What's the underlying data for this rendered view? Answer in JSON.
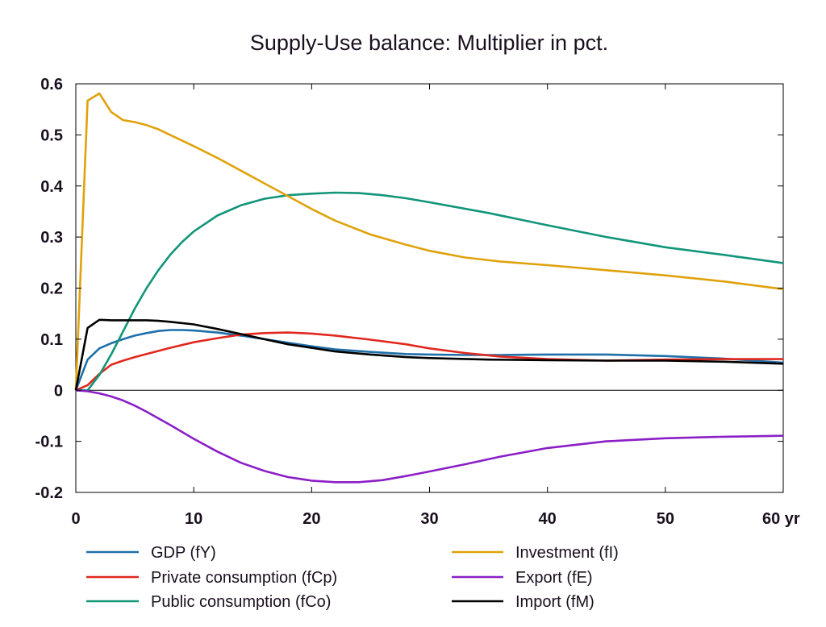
{
  "chart_data": {
    "type": "line",
    "title": "Supply-Use balance: Multiplier in pct.",
    "xlabel": "",
    "ylabel": "",
    "x_unit_label": "yr",
    "xlim": [
      0,
      60
    ],
    "ylim": [
      -0.2,
      0.6
    ],
    "x_ticks": [
      0,
      10,
      20,
      30,
      40,
      50,
      60
    ],
    "x_tick_labels": [
      "0",
      "10",
      "20",
      "30",
      "40",
      "50",
      "60 yr"
    ],
    "y_ticks": [
      -0.2,
      -0.1,
      0,
      0.1,
      0.2,
      0.3,
      0.4,
      0.5,
      0.6
    ],
    "y_tick_labels": [
      "-0.2",
      "-0.1",
      "0",
      "0.1",
      "0.2",
      "0.3",
      "0.4",
      "0.5",
      "0.6"
    ],
    "grid": false,
    "zero_line": true,
    "legend_position": "bottom",
    "series": [
      {
        "name": "GDP (fY)",
        "color": "#1f6fa8",
        "points": [
          [
            0,
            0
          ],
          [
            1,
            0.06
          ],
          [
            2,
            0.082
          ],
          [
            3,
            0.092
          ],
          [
            4,
            0.1
          ],
          [
            5,
            0.107
          ],
          [
            6,
            0.112
          ],
          [
            7,
            0.116
          ],
          [
            8,
            0.118
          ],
          [
            9,
            0.118
          ],
          [
            10,
            0.117
          ],
          [
            12,
            0.113
          ],
          [
            14,
            0.107
          ],
          [
            16,
            0.1
          ],
          [
            18,
            0.093
          ],
          [
            20,
            0.086
          ],
          [
            22,
            0.08
          ],
          [
            25,
            0.075
          ],
          [
            28,
            0.071
          ],
          [
            30,
            0.07
          ],
          [
            33,
            0.069
          ],
          [
            36,
            0.069
          ],
          [
            40,
            0.07
          ],
          [
            45,
            0.07
          ],
          [
            50,
            0.067
          ],
          [
            55,
            0.062
          ],
          [
            60,
            0.054
          ]
        ]
      },
      {
        "name": "Private consumption (fCp)",
        "color": "#e0281e",
        "points": [
          [
            0,
            0
          ],
          [
            1,
            0.01
          ],
          [
            2,
            0.032
          ],
          [
            3,
            0.05
          ],
          [
            4,
            0.058
          ],
          [
            5,
            0.065
          ],
          [
            6,
            0.071
          ],
          [
            8,
            0.083
          ],
          [
            10,
            0.094
          ],
          [
            12,
            0.102
          ],
          [
            14,
            0.109
          ],
          [
            16,
            0.112
          ],
          [
            18,
            0.113
          ],
          [
            20,
            0.111
          ],
          [
            22,
            0.107
          ],
          [
            25,
            0.099
          ],
          [
            28,
            0.09
          ],
          [
            30,
            0.082
          ],
          [
            33,
            0.073
          ],
          [
            36,
            0.066
          ],
          [
            40,
            0.061
          ],
          [
            45,
            0.058
          ],
          [
            50,
            0.06
          ],
          [
            55,
            0.061
          ],
          [
            60,
            0.061
          ]
        ]
      },
      {
        "name": "Public consumption (fCo)",
        "color": "#12957a",
        "points": [
          [
            0,
            0
          ],
          [
            1,
            0
          ],
          [
            2,
            0.03
          ],
          [
            3,
            0.07
          ],
          [
            4,
            0.115
          ],
          [
            5,
            0.16
          ],
          [
            6,
            0.2
          ],
          [
            7,
            0.235
          ],
          [
            8,
            0.265
          ],
          [
            9,
            0.29
          ],
          [
            10,
            0.311
          ],
          [
            12,
            0.342
          ],
          [
            14,
            0.362
          ],
          [
            16,
            0.375
          ],
          [
            18,
            0.382
          ],
          [
            20,
            0.385
          ],
          [
            22,
            0.387
          ],
          [
            24,
            0.386
          ],
          [
            26,
            0.382
          ],
          [
            28,
            0.376
          ],
          [
            30,
            0.368
          ],
          [
            35,
            0.347
          ],
          [
            40,
            0.323
          ],
          [
            45,
            0.3
          ],
          [
            50,
            0.28
          ],
          [
            55,
            0.265
          ],
          [
            60,
            0.249
          ]
        ]
      },
      {
        "name": "Investment (fI)",
        "color": "#e0a20c",
        "points": [
          [
            0,
            0
          ],
          [
            1,
            0.567
          ],
          [
            2,
            0.581
          ],
          [
            3,
            0.545
          ],
          [
            4,
            0.529
          ],
          [
            5,
            0.525
          ],
          [
            6,
            0.519
          ],
          [
            7,
            0.511
          ],
          [
            8,
            0.5
          ],
          [
            10,
            0.478
          ],
          [
            12,
            0.455
          ],
          [
            14,
            0.43
          ],
          [
            16,
            0.405
          ],
          [
            18,
            0.38
          ],
          [
            20,
            0.355
          ],
          [
            22,
            0.332
          ],
          [
            25,
            0.305
          ],
          [
            28,
            0.285
          ],
          [
            30,
            0.273
          ],
          [
            33,
            0.26
          ],
          [
            36,
            0.252
          ],
          [
            40,
            0.245
          ],
          [
            45,
            0.235
          ],
          [
            50,
            0.225
          ],
          [
            55,
            0.213
          ],
          [
            60,
            0.198
          ]
        ]
      },
      {
        "name": "Export (fE)",
        "color": "#8b1fc7",
        "points": [
          [
            0,
            0
          ],
          [
            1,
            -0.002
          ],
          [
            2,
            -0.006
          ],
          [
            3,
            -0.012
          ],
          [
            4,
            -0.02
          ],
          [
            5,
            -0.03
          ],
          [
            6,
            -0.042
          ],
          [
            8,
            -0.068
          ],
          [
            10,
            -0.095
          ],
          [
            12,
            -0.12
          ],
          [
            14,
            -0.142
          ],
          [
            16,
            -0.158
          ],
          [
            18,
            -0.17
          ],
          [
            20,
            -0.177
          ],
          [
            22,
            -0.18
          ],
          [
            24,
            -0.18
          ],
          [
            26,
            -0.176
          ],
          [
            28,
            -0.168
          ],
          [
            30,
            -0.159
          ],
          [
            33,
            -0.145
          ],
          [
            36,
            -0.13
          ],
          [
            40,
            -0.113
          ],
          [
            45,
            -0.1
          ],
          [
            50,
            -0.094
          ],
          [
            55,
            -0.091
          ],
          [
            60,
            -0.089
          ]
        ]
      },
      {
        "name": "Import (fM)",
        "color": "#000000",
        "points": [
          [
            0,
            0
          ],
          [
            1,
            0.122
          ],
          [
            2,
            0.138
          ],
          [
            3,
            0.137
          ],
          [
            4,
            0.137
          ],
          [
            5,
            0.137
          ],
          [
            6,
            0.137
          ],
          [
            7,
            0.136
          ],
          [
            8,
            0.134
          ],
          [
            10,
            0.129
          ],
          [
            12,
            0.12
          ],
          [
            14,
            0.11
          ],
          [
            16,
            0.1
          ],
          [
            18,
            0.09
          ],
          [
            20,
            0.083
          ],
          [
            22,
            0.076
          ],
          [
            25,
            0.07
          ],
          [
            28,
            0.065
          ],
          [
            30,
            0.063
          ],
          [
            35,
            0.06
          ],
          [
            40,
            0.059
          ],
          [
            45,
            0.058
          ],
          [
            50,
            0.058
          ],
          [
            55,
            0.056
          ],
          [
            60,
            0.052
          ]
        ]
      }
    ]
  }
}
